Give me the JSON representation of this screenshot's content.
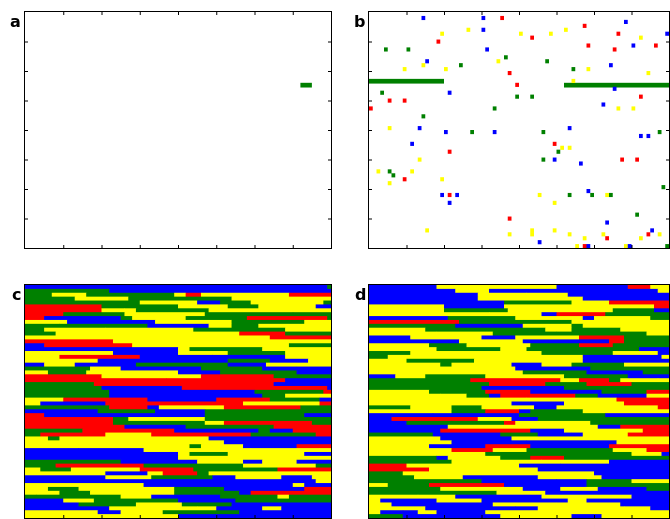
{
  "labels": {
    "a": "a",
    "b": "b",
    "c": "c",
    "d": "d"
  },
  "colors": {
    "red": "#ff0000",
    "green": "#008000",
    "blue": "#0000ff",
    "yellow": "#ffff00"
  },
  "grid": {
    "cols": 80,
    "rows": 60
  },
  "panel_a": {
    "segments": [
      {
        "row": 18,
        "c0": 72,
        "c1": 75,
        "color": "green"
      }
    ]
  },
  "panel_b": {
    "segments": [
      {
        "row": 17,
        "c0": 0,
        "c1": 20,
        "color": "green"
      },
      {
        "row": 18,
        "c0": 52,
        "c1": 80,
        "color": "green"
      }
    ],
    "dots": [
      [
        14,
        1,
        "blue"
      ],
      [
        30,
        1,
        "blue"
      ],
      [
        35,
        1,
        "red"
      ],
      [
        57,
        3,
        "red"
      ],
      [
        68,
        2,
        "blue"
      ],
      [
        19,
        5,
        "yellow"
      ],
      [
        26,
        4,
        "yellow"
      ],
      [
        30,
        4,
        "blue"
      ],
      [
        40,
        5,
        "yellow"
      ],
      [
        48,
        5,
        "yellow"
      ],
      [
        52,
        4,
        "yellow"
      ],
      [
        66,
        5,
        "red"
      ],
      [
        72,
        6,
        "yellow"
      ],
      [
        79,
        5,
        "blue"
      ],
      [
        18,
        7,
        "red"
      ],
      [
        43,
        6,
        "red"
      ],
      [
        58,
        8,
        "red"
      ],
      [
        65,
        9,
        "red"
      ],
      [
        70,
        8,
        "blue"
      ],
      [
        76,
        8,
        "red"
      ],
      [
        4,
        9,
        "green"
      ],
      [
        10,
        9,
        "green"
      ],
      [
        31,
        9,
        "blue"
      ],
      [
        36,
        11,
        "green"
      ],
      [
        15,
        12,
        "blue"
      ],
      [
        24,
        13,
        "green"
      ],
      [
        34,
        12,
        "yellow"
      ],
      [
        47,
        12,
        "green"
      ],
      [
        58,
        14,
        "yellow"
      ],
      [
        9,
        14,
        "yellow"
      ],
      [
        14,
        13,
        "yellow"
      ],
      [
        20,
        14,
        "yellow"
      ],
      [
        54,
        14,
        "green"
      ],
      [
        64,
        13,
        "blue"
      ],
      [
        37,
        15,
        "red"
      ],
      [
        74,
        15,
        "yellow"
      ],
      [
        39,
        18,
        "red"
      ],
      [
        54,
        17,
        "yellow"
      ],
      [
        65,
        19,
        "blue"
      ],
      [
        3,
        20,
        "green"
      ],
      [
        21,
        20,
        "blue"
      ],
      [
        39,
        21,
        "green"
      ],
      [
        43,
        21,
        "green"
      ],
      [
        72,
        21,
        "red"
      ],
      [
        5,
        22,
        "red"
      ],
      [
        9,
        22,
        "red"
      ],
      [
        0,
        24,
        "red"
      ],
      [
        33,
        24,
        "green"
      ],
      [
        62,
        23,
        "blue"
      ],
      [
        66,
        24,
        "yellow"
      ],
      [
        14,
        26,
        "green"
      ],
      [
        70,
        24,
        "yellow"
      ],
      [
        5,
        29,
        "yellow"
      ],
      [
        13,
        29,
        "blue"
      ],
      [
        20,
        30,
        "blue"
      ],
      [
        27,
        30,
        "green"
      ],
      [
        33,
        30,
        "blue"
      ],
      [
        46,
        30,
        "green"
      ],
      [
        53,
        29,
        "blue"
      ],
      [
        72,
        31,
        "blue"
      ],
      [
        74,
        31,
        "blue"
      ],
      [
        77,
        30,
        "green"
      ],
      [
        11,
        33,
        "blue"
      ],
      [
        49,
        33,
        "red"
      ],
      [
        51,
        34,
        "yellow"
      ],
      [
        53,
        34,
        "yellow"
      ],
      [
        21,
        35,
        "red"
      ],
      [
        50,
        35,
        "green"
      ],
      [
        13,
        37,
        "yellow"
      ],
      [
        46,
        37,
        "green"
      ],
      [
        49,
        37,
        "blue"
      ],
      [
        56,
        38,
        "blue"
      ],
      [
        67,
        37,
        "red"
      ],
      [
        71,
        37,
        "red"
      ],
      [
        2,
        40,
        "yellow"
      ],
      [
        5,
        40,
        "green"
      ],
      [
        6,
        41,
        "green"
      ],
      [
        11,
        40,
        "yellow"
      ],
      [
        9,
        42,
        "red"
      ],
      [
        19,
        42,
        "yellow"
      ],
      [
        5,
        43,
        "yellow"
      ],
      [
        58,
        45,
        "blue"
      ],
      [
        53,
        46,
        "green"
      ],
      [
        59,
        46,
        "green"
      ],
      [
        63,
        46,
        "yellow"
      ],
      [
        64,
        46,
        "green"
      ],
      [
        78,
        44,
        "green"
      ],
      [
        19,
        46,
        "blue"
      ],
      [
        21,
        46,
        "red"
      ],
      [
        23,
        46,
        "blue"
      ],
      [
        21,
        48,
        "blue"
      ],
      [
        45,
        46,
        "yellow"
      ],
      [
        49,
        48,
        "yellow"
      ],
      [
        37,
        52,
        "red"
      ],
      [
        71,
        51,
        "green"
      ],
      [
        63,
        53,
        "blue"
      ],
      [
        15,
        55,
        "yellow"
      ],
      [
        37,
        56,
        "yellow"
      ],
      [
        43,
        56,
        "yellow"
      ],
      [
        43,
        55,
        "yellow"
      ],
      [
        49,
        55,
        "yellow"
      ],
      [
        53,
        56,
        "yellow"
      ],
      [
        75,
        55,
        "blue"
      ],
      [
        77,
        56,
        "yellow"
      ],
      [
        45,
        58,
        "blue"
      ],
      [
        62,
        56,
        "yellow"
      ],
      [
        63,
        57,
        "red"
      ],
      [
        72,
        57,
        "yellow"
      ],
      [
        74,
        56,
        "red"
      ],
      [
        55,
        59,
        "yellow"
      ],
      [
        57,
        57,
        "yellow"
      ],
      [
        57,
        59,
        "red"
      ],
      [
        58,
        59,
        "blue"
      ],
      [
        68,
        59,
        "yellow"
      ],
      [
        69,
        59,
        "blue"
      ],
      [
        79,
        59,
        "green"
      ]
    ]
  }
}
